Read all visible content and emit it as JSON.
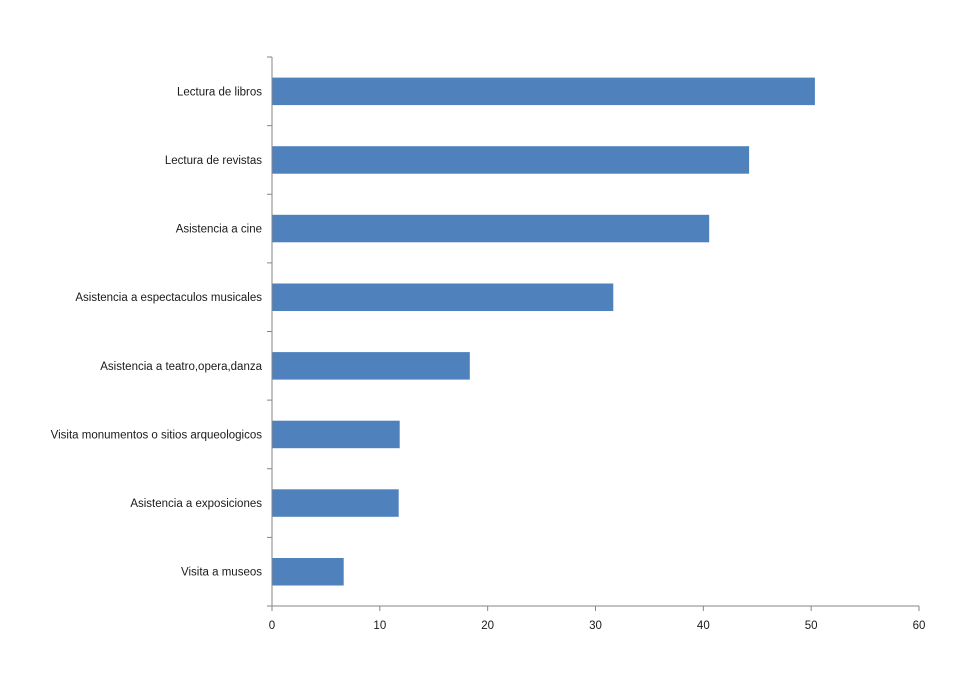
{
  "chart_data": {
    "type": "bar",
    "orientation": "horizontal",
    "title": "",
    "xlabel": "",
    "ylabel": "",
    "categories": [
      "Lectura de libros",
      "Lectura de revistas",
      "Asistencia a cine",
      "Asistencia a espectaculos musicales",
      "Asistencia a teatro,opera,danza",
      "Visita monumentos o sitios arqueologicos",
      "Asistencia a exposiciones",
      "Visita a museos"
    ],
    "values": [
      50.3,
      44.2,
      40.5,
      31.6,
      18.3,
      11.8,
      11.7,
      6.6
    ],
    "xlim": [
      0,
      60
    ],
    "xticks": [
      "0",
      "10",
      "20",
      "30",
      "40",
      "50",
      "60"
    ],
    "grid": false,
    "legend": "none",
    "bar_color": "#4F81BD",
    "axis_color": "#868686"
  }
}
